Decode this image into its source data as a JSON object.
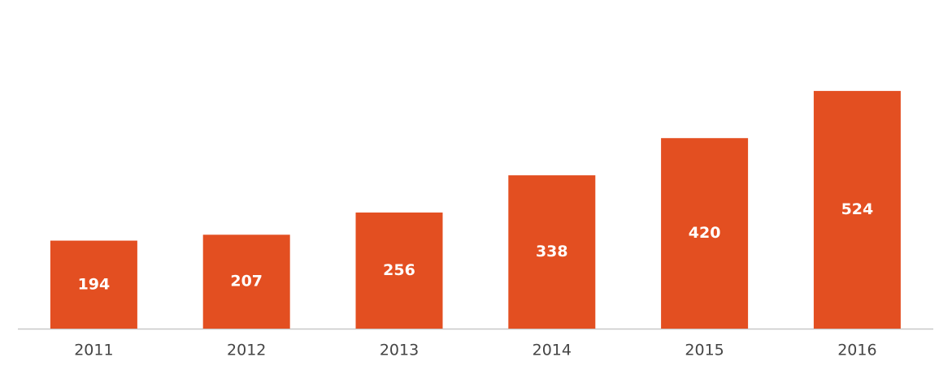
{
  "chart_data": {
    "type": "bar",
    "categories": [
      "2011",
      "2012",
      "2013",
      "2014",
      "2015",
      "2016"
    ],
    "values": [
      194,
      207,
      256,
      338,
      420,
      524
    ],
    "color": "#e34f21"
  }
}
